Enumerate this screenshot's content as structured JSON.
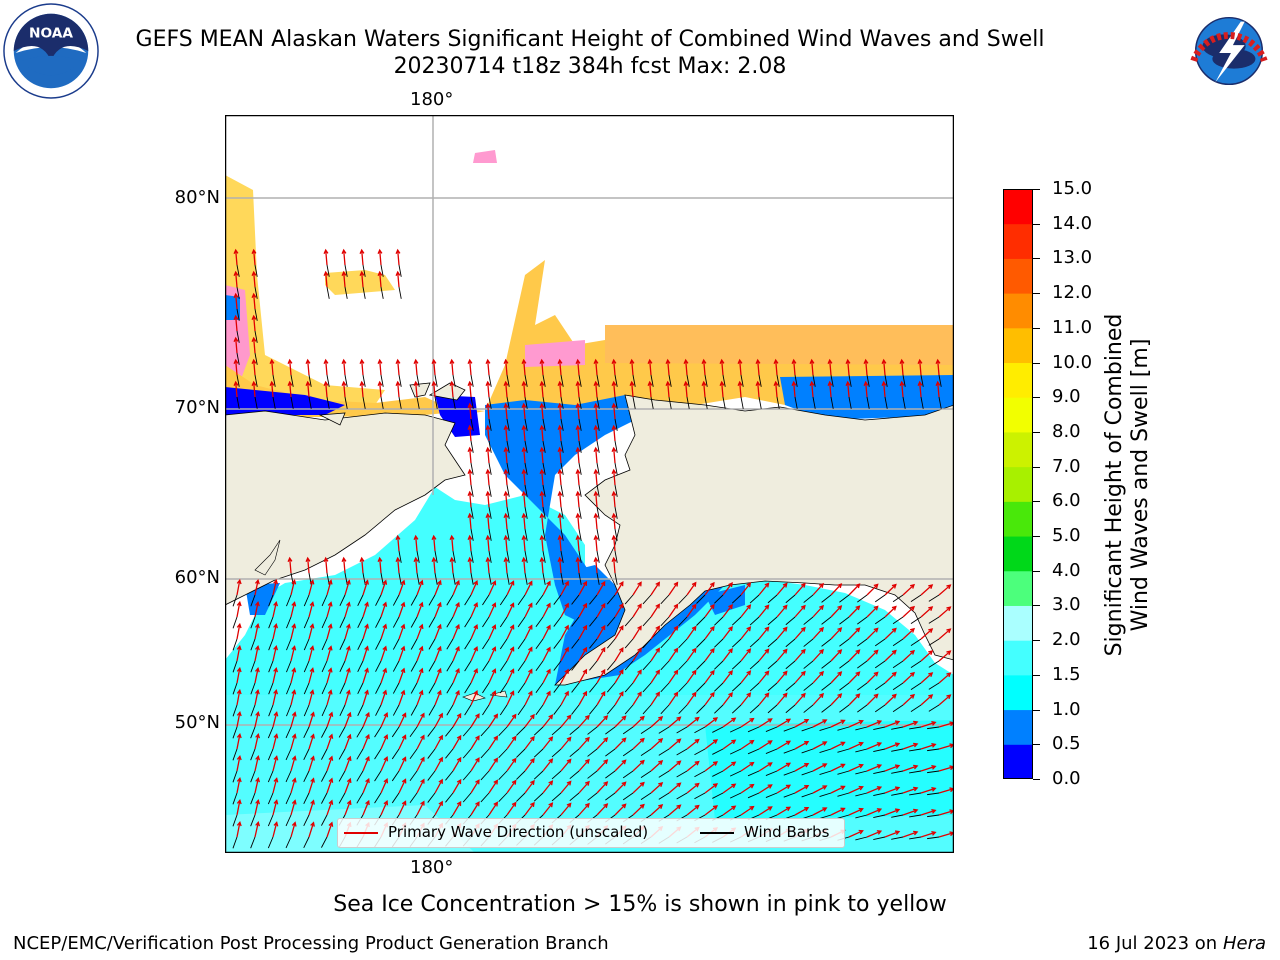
{
  "title": {
    "line1": "GEFS MEAN Alaskan Waters Significant Height of Combined Wind Waves and Swell",
    "line2": "20230714 t18z 384h fcst   Max: 2.08"
  },
  "logos": {
    "noaa": {
      "text": "NOAA",
      "ring_text": "NATIONAL OCEANIC AND ATMOSPHERIC ADMINISTRATION · U.S. DEPARTMENT OF COMMERCE"
    },
    "nws": {
      "ring_text": "NATIONAL WEATHER SERVICE"
    }
  },
  "map": {
    "lon_labels": [
      "180°",
      "180°"
    ],
    "lat_labels": [
      "80°N",
      "70°N",
      "60°N",
      "50°N"
    ],
    "land_color": "#efedde",
    "legend": {
      "primary_wave": "Primary Wave Direction (unscaled)",
      "wind_barbs": "Wind Barbs",
      "wave_color": "#e00000",
      "barb_color": "#000000"
    }
  },
  "colorbar": {
    "ticks": [
      "0.0",
      "0.5",
      "1.0",
      "1.5",
      "2.0",
      "3.0",
      "4.0",
      "5.0",
      "6.0",
      "7.0",
      "8.0",
      "9.0",
      "10.0",
      "11.0",
      "12.0",
      "13.0",
      "14.0",
      "15.0"
    ],
    "colors": [
      "#0000ff",
      "#0080ff",
      "#00ffff",
      "#44ffff",
      "#aaffff",
      "#4cff7c",
      "#00d819",
      "#49e80a",
      "#a8f000",
      "#ccf200",
      "#f2ff00",
      "#ffed00",
      "#ffbe00",
      "#ff8c00",
      "#ff5a00",
      "#ff2d00",
      "#ff0000"
    ],
    "label_line1": "Significant Height of Combined",
    "label_line2": "Wind Waves and Swell [m]"
  },
  "caption": "Sea Ice Concentration > 15% is shown in pink to yellow",
  "footer": {
    "left": "NCEP/EMC/Verification Post Processing Product Generation Branch",
    "right_date": "16 Jul 2023 on ",
    "right_host": "Hera"
  }
}
